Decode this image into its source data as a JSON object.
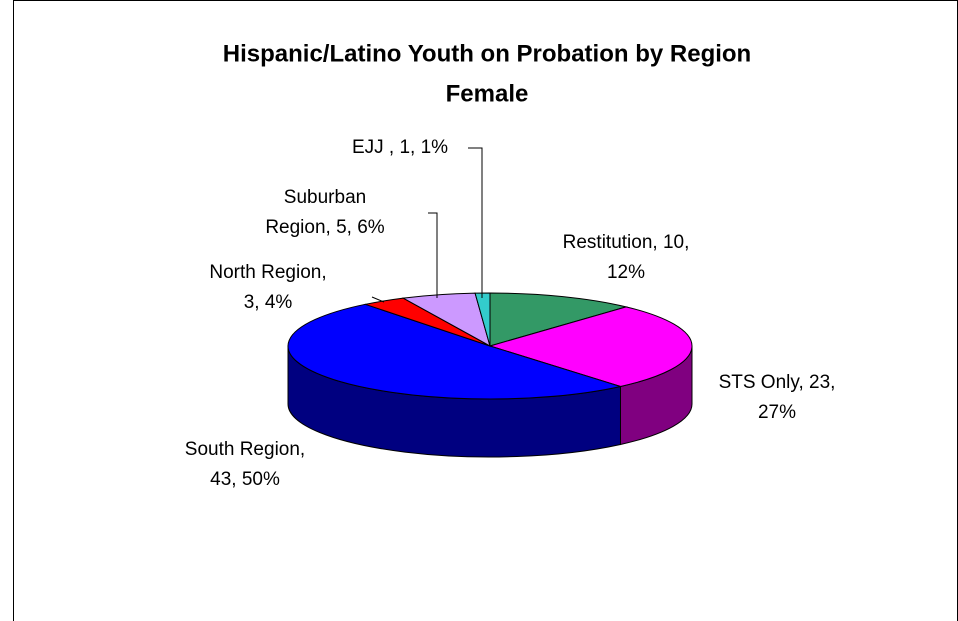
{
  "chart_data": {
    "type": "pie3d",
    "title": [
      "Hispanic/Latino Youth on Probation by Region",
      "Female"
    ],
    "values": [
      10,
      23,
      43,
      3,
      5,
      1
    ],
    "percents": [
      12,
      27,
      50,
      4,
      6,
      1
    ],
    "value_labels": [
      [
        "Restitution, 10,",
        "12%"
      ],
      [
        "STS Only, 23,",
        "27%"
      ],
      [
        "South Region,",
        "43, 50%"
      ],
      [
        "North Region,",
        "3, 4%"
      ],
      [
        "Suburban",
        "Region, 5, 6%"
      ],
      [
        "EJJ , 1, 1%"
      ]
    ],
    "colors": [
      "#339966",
      "#ff00ff",
      "#0000ff",
      "#ff0000",
      "#cc99ff",
      "#33cccc"
    ],
    "side_colors": [
      "#1f5c3d",
      "#800080",
      "#000080",
      "#800000",
      "#7a5c99",
      "#1f7a7a"
    ]
  }
}
